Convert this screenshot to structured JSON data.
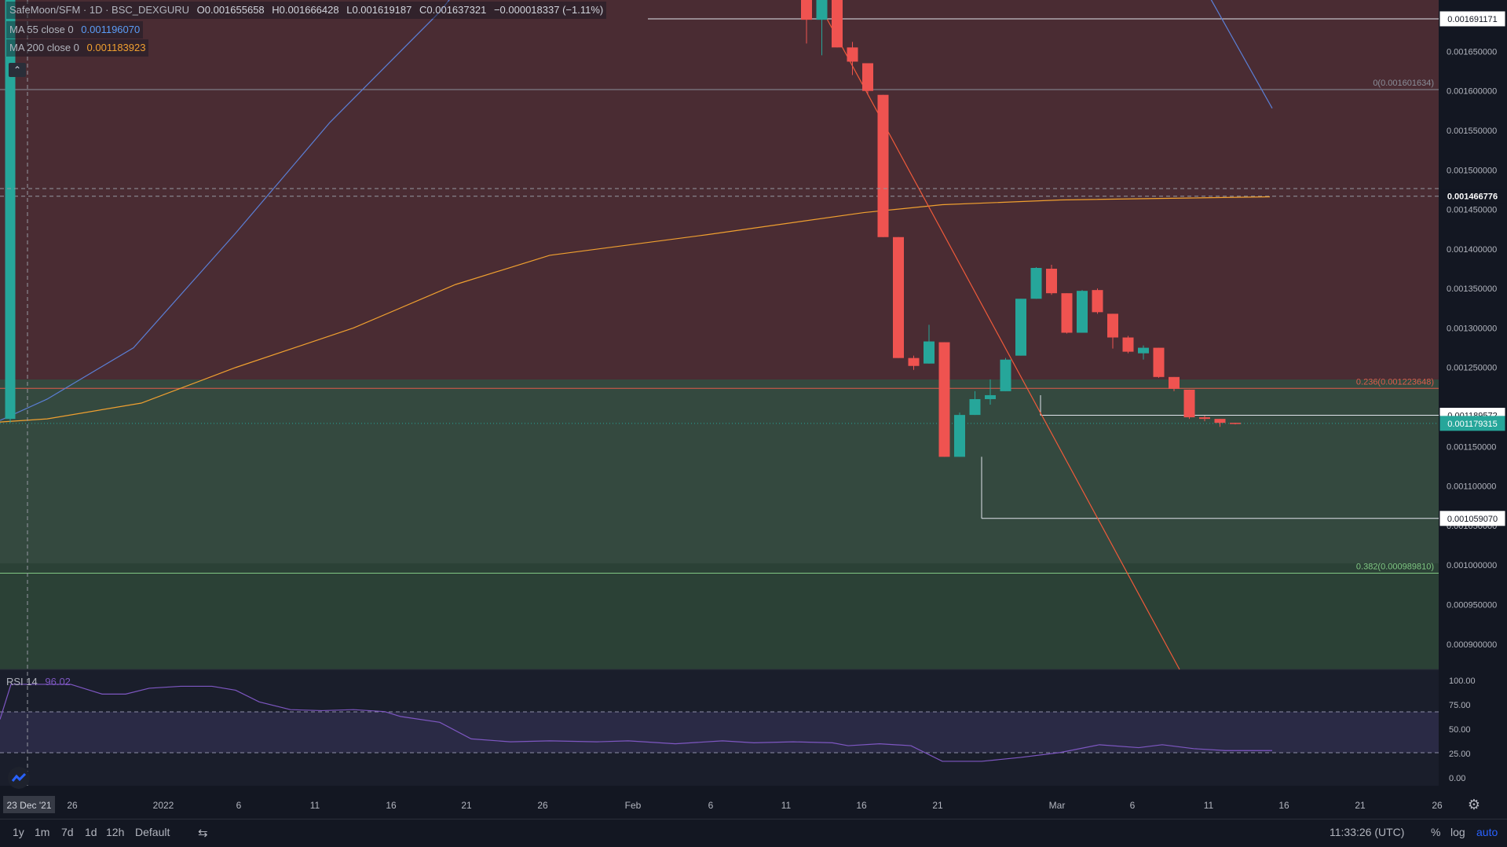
{
  "legend": {
    "symbol": "SafeMoon/SFM · 1D · BSC_DEXGURU",
    "o": "O0.001655658",
    "h": "H0.001666428",
    "l": "L0.001619187",
    "c": "C0.001637321",
    "change": "−0.000018337 (−1.11%)",
    "ma55_label": "MA 55 close 0",
    "ma55_value": "0.001196070",
    "ma200_label": "MA 200 close 0",
    "ma200_value": "0.001183923",
    "collapse_icon": "chevron-up-icon"
  },
  "colors": {
    "background": "#131722",
    "bull": "#26a69a",
    "bear": "#ef5350",
    "ma55": "#5b7fd6",
    "ma200": "#f0a030",
    "trendline": "#f05a3a",
    "rsi": "#7e57c2",
    "zone_upper": "#4c2c32",
    "zone_lower": "#33493e",
    "zone_bottom": "#2c4236"
  },
  "chart_data": {
    "type": "candlestick",
    "title": "SafeMoon/SFM",
    "timeframe": "1D",
    "exchange": "BSC_DEXGURU",
    "ylim": [
      0.000868,
      0.001715
    ],
    "price_axis_ticks": [
      "0.001650000",
      "0.001600000",
      "0.001550000",
      "0.001500000",
      "0.001450000",
      "0.001400000",
      "0.001350000",
      "0.001300000",
      "0.001250000",
      "0.001150000",
      "0.001100000",
      "0.001050000",
      "0.001000000",
      "0.000950000",
      "0.000900000"
    ],
    "price_tags": [
      {
        "label": "0.001691171",
        "value": 0.001691171,
        "style": "white"
      },
      {
        "label": "0.001466776",
        "value": 0.001466776,
        "style": "dark"
      },
      {
        "label": "0.001189572",
        "value": 0.001189572,
        "style": "white"
      },
      {
        "label": "0.001179315",
        "value": 0.001179315,
        "style": "teal"
      },
      {
        "label": "0.001059070",
        "value": 0.00105907,
        "style": "white"
      }
    ],
    "fib_levels": [
      {
        "label": "0(0.001601634)",
        "value": 0.001601634
      },
      {
        "label": "0.236(0.001223648)",
        "value": 0.001223648
      },
      {
        "label": "0.382(0.000989810)",
        "value": 0.00098981
      }
    ],
    "x_axis_labels": [
      "23 Dec '21",
      "26",
      "2022",
      "6",
      "11",
      "16",
      "21",
      "26",
      "Feb",
      "6",
      "11",
      "16",
      "21",
      "Mar",
      "6",
      "11",
      "16",
      "21",
      "26"
    ],
    "candles": [
      {
        "date": "2022-02-13",
        "o": 0.001755,
        "h": 0.00177,
        "l": 0.00166,
        "c": 0.00169
      },
      {
        "date": "2022-02-14",
        "o": 0.00169,
        "h": 0.00174,
        "l": 0.001645,
        "c": 0.00172
      },
      {
        "date": "2022-02-15",
        "o": 0.00172,
        "h": 0.00173,
        "l": 0.001655,
        "c": 0.001655
      },
      {
        "date": "2022-02-16",
        "o": 0.001655,
        "h": 0.001662,
        "l": 0.00162,
        "c": 0.001637
      },
      {
        "date": "2022-02-17",
        "o": 0.001635,
        "h": 0.001635,
        "l": 0.001595,
        "c": 0.0016
      },
      {
        "date": "2022-02-18",
        "o": 0.001595,
        "h": 0.001595,
        "l": 0.001415,
        "c": 0.001415
      },
      {
        "date": "2022-02-19",
        "o": 0.001415,
        "h": 0.001415,
        "l": 0.001262,
        "c": 0.001262
      },
      {
        "date": "2022-02-20",
        "o": 0.001262,
        "h": 0.001265,
        "l": 0.001247,
        "c": 0.001252
      },
      {
        "date": "2022-02-21",
        "o": 0.001255,
        "h": 0.001304,
        "l": 0.001255,
        "c": 0.001283
      },
      {
        "date": "2022-02-22",
        "o": 0.001282,
        "h": 0.001282,
        "l": 0.001137,
        "c": 0.001137
      },
      {
        "date": "2022-02-23",
        "o": 0.001137,
        "h": 0.001193,
        "l": 0.001137,
        "c": 0.00119
      },
      {
        "date": "2022-02-24",
        "o": 0.00119,
        "h": 0.00122,
        "l": 0.00119,
        "c": 0.00121
      },
      {
        "date": "2022-02-25",
        "o": 0.00121,
        "h": 0.001235,
        "l": 0.001203,
        "c": 0.001215
      },
      {
        "date": "2022-02-26",
        "o": 0.00122,
        "h": 0.001262,
        "l": 0.00122,
        "c": 0.00126
      },
      {
        "date": "2022-02-27",
        "o": 0.001265,
        "h": 0.001337,
        "l": 0.001265,
        "c": 0.001337
      },
      {
        "date": "2022-02-28",
        "o": 0.001337,
        "h": 0.001377,
        "l": 0.001337,
        "c": 0.001376
      },
      {
        "date": "2022-03-01",
        "o": 0.001375,
        "h": 0.00138,
        "l": 0.001342,
        "c": 0.001344
      },
      {
        "date": "2022-03-02",
        "o": 0.001344,
        "h": 0.001344,
        "l": 0.001293,
        "c": 0.001294
      },
      {
        "date": "2022-03-03",
        "o": 0.001294,
        "h": 0.001348,
        "l": 0.001294,
        "c": 0.001347
      },
      {
        "date": "2022-03-04",
        "o": 0.001348,
        "h": 0.00135,
        "l": 0.001318,
        "c": 0.00132
      },
      {
        "date": "2022-03-05",
        "o": 0.001318,
        "h": 0.001318,
        "l": 0.001274,
        "c": 0.001288
      },
      {
        "date": "2022-03-06",
        "o": 0.001288,
        "h": 0.00129,
        "l": 0.001268,
        "c": 0.00127
      },
      {
        "date": "2022-03-07",
        "o": 0.001268,
        "h": 0.001278,
        "l": 0.00126,
        "c": 0.001275
      },
      {
        "date": "2022-03-08",
        "o": 0.001275,
        "h": 0.001275,
        "l": 0.001237,
        "c": 0.001238
      },
      {
        "date": "2022-03-09",
        "o": 0.001238,
        "h": 0.001238,
        "l": 0.00122,
        "c": 0.001223
      },
      {
        "date": "2022-03-10",
        "o": 0.001222,
        "h": 0.001222,
        "l": 0.001185,
        "c": 0.001187
      },
      {
        "date": "2022-03-11",
        "o": 0.001187,
        "h": 0.001189,
        "l": 0.001182,
        "c": 0.001185
      },
      {
        "date": "2022-03-12",
        "o": 0.001185,
        "h": 0.001185,
        "l": 0.001175,
        "c": 0.00118
      },
      {
        "date": "2022-03-13",
        "o": 0.00118,
        "h": 0.00118,
        "l": 0.001178,
        "c": 0.001179
      }
    ],
    "left_candle": {
      "date": "2021-12-23",
      "o": 0.001185,
      "h": 0.001725,
      "l": 0.00118,
      "c": 0.001715
    },
    "rsi": {
      "label": "RSI 14",
      "value": "96.02",
      "ticks": [
        "100.00",
        "75.00",
        "50.00",
        "25.00",
        "0.00"
      ],
      "bands": [
        30,
        70
      ]
    }
  },
  "crosshair_date": "23 Dec '21",
  "toolbar": {
    "timeframes": [
      "1y",
      "1m",
      "7d",
      "1d",
      "12h",
      "Default"
    ],
    "compare_icon": "calendar-range-icon",
    "clock": "11:33:26 (UTC)",
    "percent": "%",
    "log": "log",
    "auto": "auto",
    "settings_icon": "gear-icon"
  }
}
